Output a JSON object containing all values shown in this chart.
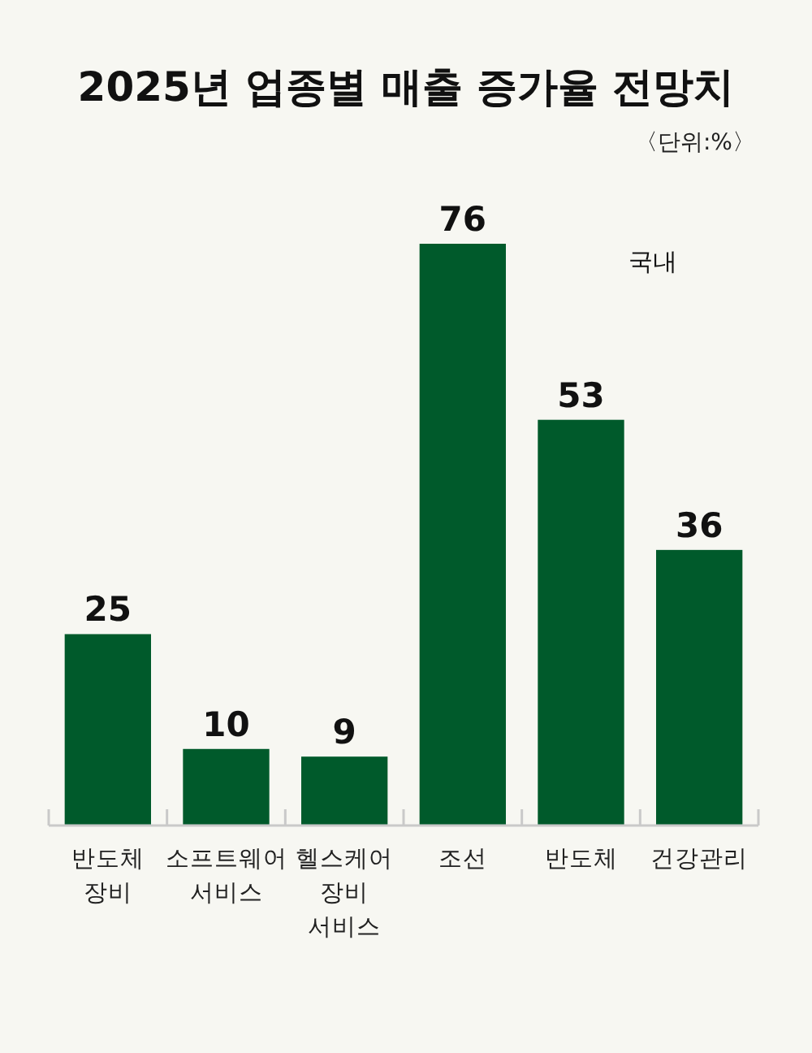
{
  "chart_data": {
    "type": "bar",
    "title": "2025년 업종별 매출 증가율 전망치",
    "subtitle": "〈단위:%〉",
    "categories": [
      "반도체 장비",
      "소프트웨어 서비스",
      "헬스케어 장비 서비스",
      "조선",
      "반도체",
      "건강관리"
    ],
    "values": [
      25,
      10,
      9,
      76,
      53,
      36
    ],
    "color": "#005a2b",
    "data_labels": true,
    "annotations": [
      "국내"
    ]
  }
}
